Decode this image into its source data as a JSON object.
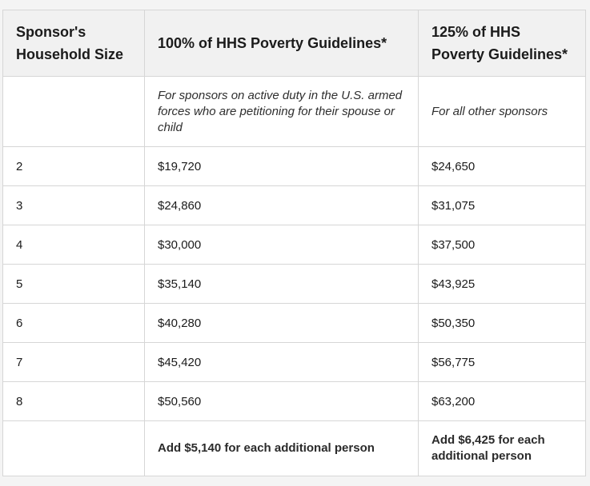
{
  "table": {
    "headers": [
      "Sponsor's Household Size",
      "100% of HHS Poverty Guidelines*",
      "125% of HHS Poverty Guidelines*"
    ],
    "note_row": [
      "",
      "For sponsors on active duty in the U.S. armed forces who are petitioning for their spouse or child",
      "For all other sponsors"
    ],
    "rows": [
      [
        "2",
        "$19,720",
        "$24,650"
      ],
      [
        "3",
        "$24,860",
        "$31,075"
      ],
      [
        "4",
        "$30,000",
        "$37,500"
      ],
      [
        "5",
        "$35,140",
        "$43,925"
      ],
      [
        "6",
        "$40,280",
        "$50,350"
      ],
      [
        "7",
        "$45,420",
        "$56,775"
      ],
      [
        "8",
        "$50,560",
        "$63,200"
      ]
    ],
    "footer_row": [
      "",
      "Add $5,140 for each additional person",
      "Add $6,425 for each additional person"
    ]
  }
}
